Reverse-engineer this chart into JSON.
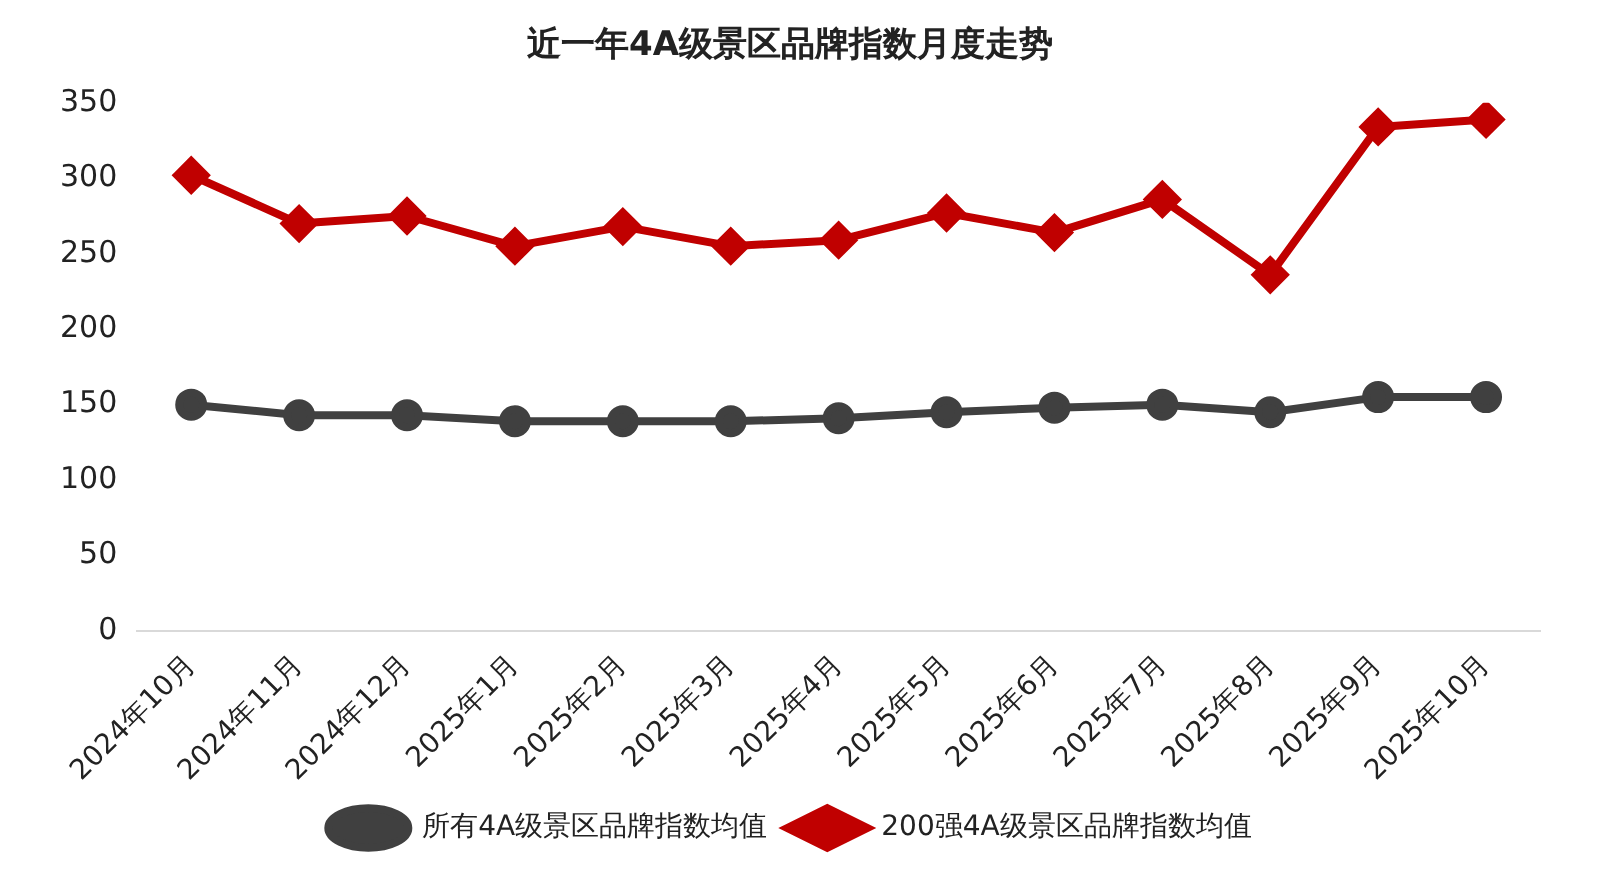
{
  "chart_data": {
    "type": "line",
    "title": "近一年4A级景区品牌指数月度走势",
    "categories": [
      "2024年10月",
      "2024年11月",
      "2024年12月",
      "2025年1月",
      "2025年2月",
      "2025年3月",
      "2025年4月",
      "2025年5月",
      "2025年6月",
      "2025年7月",
      "2025年8月",
      "2025年9月",
      "2025年10月"
    ],
    "series": [
      {
        "name": "所有4A级景区品牌指数均值",
        "color": "#404040",
        "marker": "circle",
        "values": [
          150,
          143,
          143,
          139,
          139,
          139,
          141,
          145,
          148,
          150,
          145,
          155,
          155
        ]
      },
      {
        "name": "200强4A级景区品牌指数均值",
        "color": "#c00000",
        "marker": "diamond",
        "values": [
          302,
          270,
          275,
          255,
          268,
          255,
          259,
          277,
          264,
          286,
          236,
          334,
          339
        ]
      }
    ],
    "ylim": [
      0,
      350
    ],
    "yticks": [
      0,
      50,
      100,
      150,
      200,
      250,
      300,
      350
    ],
    "grid": false,
    "legend": "bottom",
    "line_style": "solid"
  }
}
